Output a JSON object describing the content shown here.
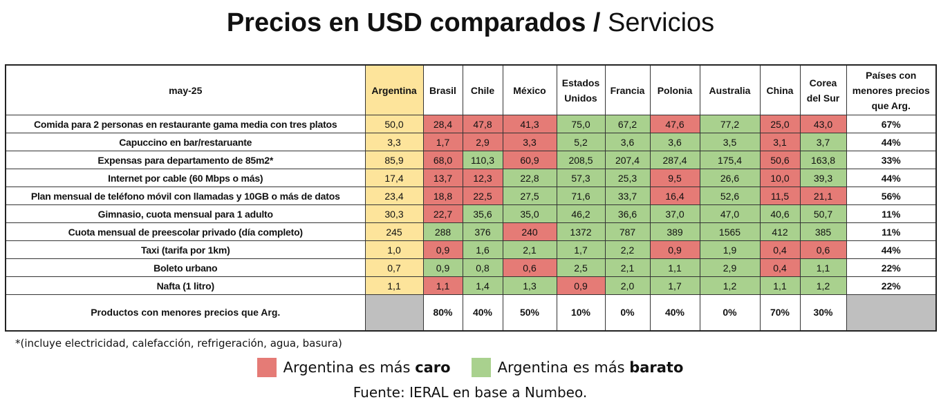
{
  "title": {
    "bold": "Precios en USD comparados /",
    "light": "Servicios"
  },
  "colors": {
    "caro": "#e57b76",
    "barato": "#a9d18e",
    "argentina": "#fde49b",
    "na": "#bfbfbf"
  },
  "chart_data": {
    "type": "table",
    "corner": "may-25",
    "columns": [
      "Argentina",
      "Brasil",
      "Chile",
      "México",
      "Estados Unidos",
      "Francia",
      "Polonia",
      "Australia",
      "China",
      "Corea del Sur"
    ],
    "last_column": "Países con menores precios que Arg.",
    "rows": [
      {
        "label": "Comida para 2 personas en restaurante gama media con tres platos",
        "values": [
          "50,0",
          "28,4",
          "47,8",
          "41,3",
          "75,0",
          "67,2",
          "47,6",
          "77,2",
          "25,0",
          "43,0"
        ],
        "status": [
          "r",
          "r",
          "r",
          "g",
          "g",
          "r",
          "g",
          "r",
          "r"
        ],
        "pct": "67%"
      },
      {
        "label": "Capuccino en bar/restaruante",
        "values": [
          "3,3",
          "1,7",
          "2,9",
          "3,3",
          "5,2",
          "3,6",
          "3,6",
          "3,5",
          "3,1",
          "3,7"
        ],
        "status": [
          "r",
          "r",
          "r",
          "g",
          "g",
          "g",
          "g",
          "r",
          "g"
        ],
        "pct": "44%"
      },
      {
        "label": "Expensas para departamento de 85m2*",
        "values": [
          "85,9",
          "68,0",
          "110,3",
          "60,9",
          "208,5",
          "207,4",
          "287,4",
          "175,4",
          "50,6",
          "163,8"
        ],
        "status": [
          "r",
          "g",
          "r",
          "g",
          "g",
          "g",
          "g",
          "r",
          "g"
        ],
        "pct": "33%"
      },
      {
        "label": "Internet por cable (60 Mbps o más)",
        "values": [
          "17,4",
          "13,7",
          "12,3",
          "22,8",
          "57,3",
          "25,3",
          "9,5",
          "26,6",
          "10,0",
          "39,3"
        ],
        "status": [
          "r",
          "r",
          "g",
          "g",
          "g",
          "r",
          "g",
          "r",
          "g"
        ],
        "pct": "44%"
      },
      {
        "label": "Plan mensual de teléfono móvil con llamadas y 10GB o más de datos",
        "values": [
          "23,4",
          "18,8",
          "22,5",
          "27,5",
          "71,6",
          "33,7",
          "16,4",
          "52,6",
          "11,5",
          "21,1"
        ],
        "status": [
          "r",
          "r",
          "g",
          "g",
          "g",
          "r",
          "g",
          "r",
          "r"
        ],
        "pct": "56%"
      },
      {
        "label": "Gimnasio, cuota mensual para 1 adulto",
        "values": [
          "30,3",
          "22,7",
          "35,6",
          "35,0",
          "46,2",
          "36,6",
          "37,0",
          "47,0",
          "40,6",
          "50,7"
        ],
        "status": [
          "r",
          "g",
          "g",
          "g",
          "g",
          "g",
          "g",
          "g",
          "g"
        ],
        "pct": "11%"
      },
      {
        "label": "Cuota mensual de preescolar privado (día completo)",
        "values": [
          "245",
          "288",
          "376",
          "240",
          "1372",
          "787",
          "389",
          "1565",
          "412",
          "385"
        ],
        "status": [
          "g",
          "g",
          "r",
          "g",
          "g",
          "g",
          "g",
          "g",
          "g"
        ],
        "pct": "11%"
      },
      {
        "label": "Taxi (tarifa por 1km)",
        "values": [
          "1,0",
          "0,9",
          "1,6",
          "2,1",
          "1,7",
          "2,2",
          "0,9",
          "1,9",
          "0,4",
          "0,6"
        ],
        "status": [
          "r",
          "g",
          "g",
          "g",
          "g",
          "r",
          "g",
          "r",
          "r"
        ],
        "pct": "44%"
      },
      {
        "label": "Boleto urbano",
        "values": [
          "0,7",
          "0,9",
          "0,8",
          "0,6",
          "2,5",
          "2,1",
          "1,1",
          "2,9",
          "0,4",
          "1,1"
        ],
        "status": [
          "g",
          "g",
          "r",
          "g",
          "g",
          "g",
          "g",
          "r",
          "g"
        ],
        "pct": "22%"
      },
      {
        "label": "Nafta (1 litro)",
        "values": [
          "1,1",
          "1,1",
          "1,4",
          "1,3",
          "0,9",
          "2,0",
          "1,7",
          "1,2",
          "1,1",
          "1,2"
        ],
        "status": [
          "r",
          "g",
          "g",
          "r",
          "g",
          "g",
          "g",
          "g",
          "g"
        ],
        "pct": "22%"
      }
    ],
    "summary": {
      "label": "Productos con menores precios que Arg.",
      "values": [
        "80%",
        "40%",
        "50%",
        "10%",
        "0%",
        "40%",
        "0%",
        "70%",
        "30%"
      ]
    }
  },
  "footnote": "*(incluye electricidad, calefacción, refrigeración, agua, basura)",
  "legend": {
    "prefix": "Argentina es más",
    "caro": "caro",
    "barato": "barato"
  },
  "source": "Fuente: IERAL en base a Numbeo."
}
